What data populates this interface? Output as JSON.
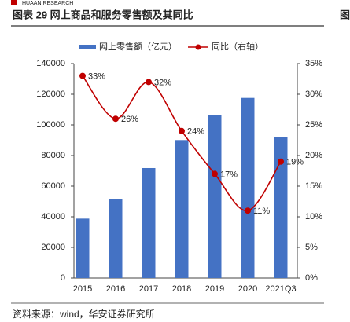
{
  "brand": "HUAAN RESEARCH",
  "edge_text": "图",
  "source": "资料来源：wind，华安证券研究所",
  "chart_data": {
    "type": "bar_line",
    "title": "图表 29  网上商品和服务零售额及其同比",
    "categories": [
      "2015",
      "2016",
      "2017",
      "2018",
      "2019",
      "2020",
      "2021Q3"
    ],
    "series": [
      {
        "name": "网上零售额（亿元）",
        "color": "#4472c4",
        "type": "bar",
        "axis": "y",
        "values": [
          38800,
          51600,
          71800,
          90100,
          106300,
          117600,
          91900
        ]
      },
      {
        "name": "同比（右轴）",
        "color": "#c00000",
        "type": "line",
        "axis": "y2",
        "values": [
          33,
          26,
          32,
          24,
          17,
          11,
          19
        ],
        "value_labels": [
          "33%",
          "26%",
          "32%",
          "24%",
          "17%",
          "11%",
          "19%"
        ]
      }
    ],
    "ylim": [
      0,
      140000
    ],
    "yticks": [
      0,
      20000,
      40000,
      60000,
      80000,
      100000,
      120000,
      140000
    ],
    "y2lim": [
      0,
      35
    ],
    "y2ticks": [
      {
        "value": 0,
        "label": "0%"
      },
      {
        "value": 5,
        "label": "5%"
      },
      {
        "value": 10,
        "label": "10%"
      },
      {
        "value": 15,
        "label": "15%"
      },
      {
        "value": 20,
        "label": "20%"
      },
      {
        "value": 25,
        "label": "25%"
      },
      {
        "value": 30,
        "label": "30%"
      },
      {
        "value": 35,
        "label": "35%"
      }
    ],
    "legend": "top"
  }
}
